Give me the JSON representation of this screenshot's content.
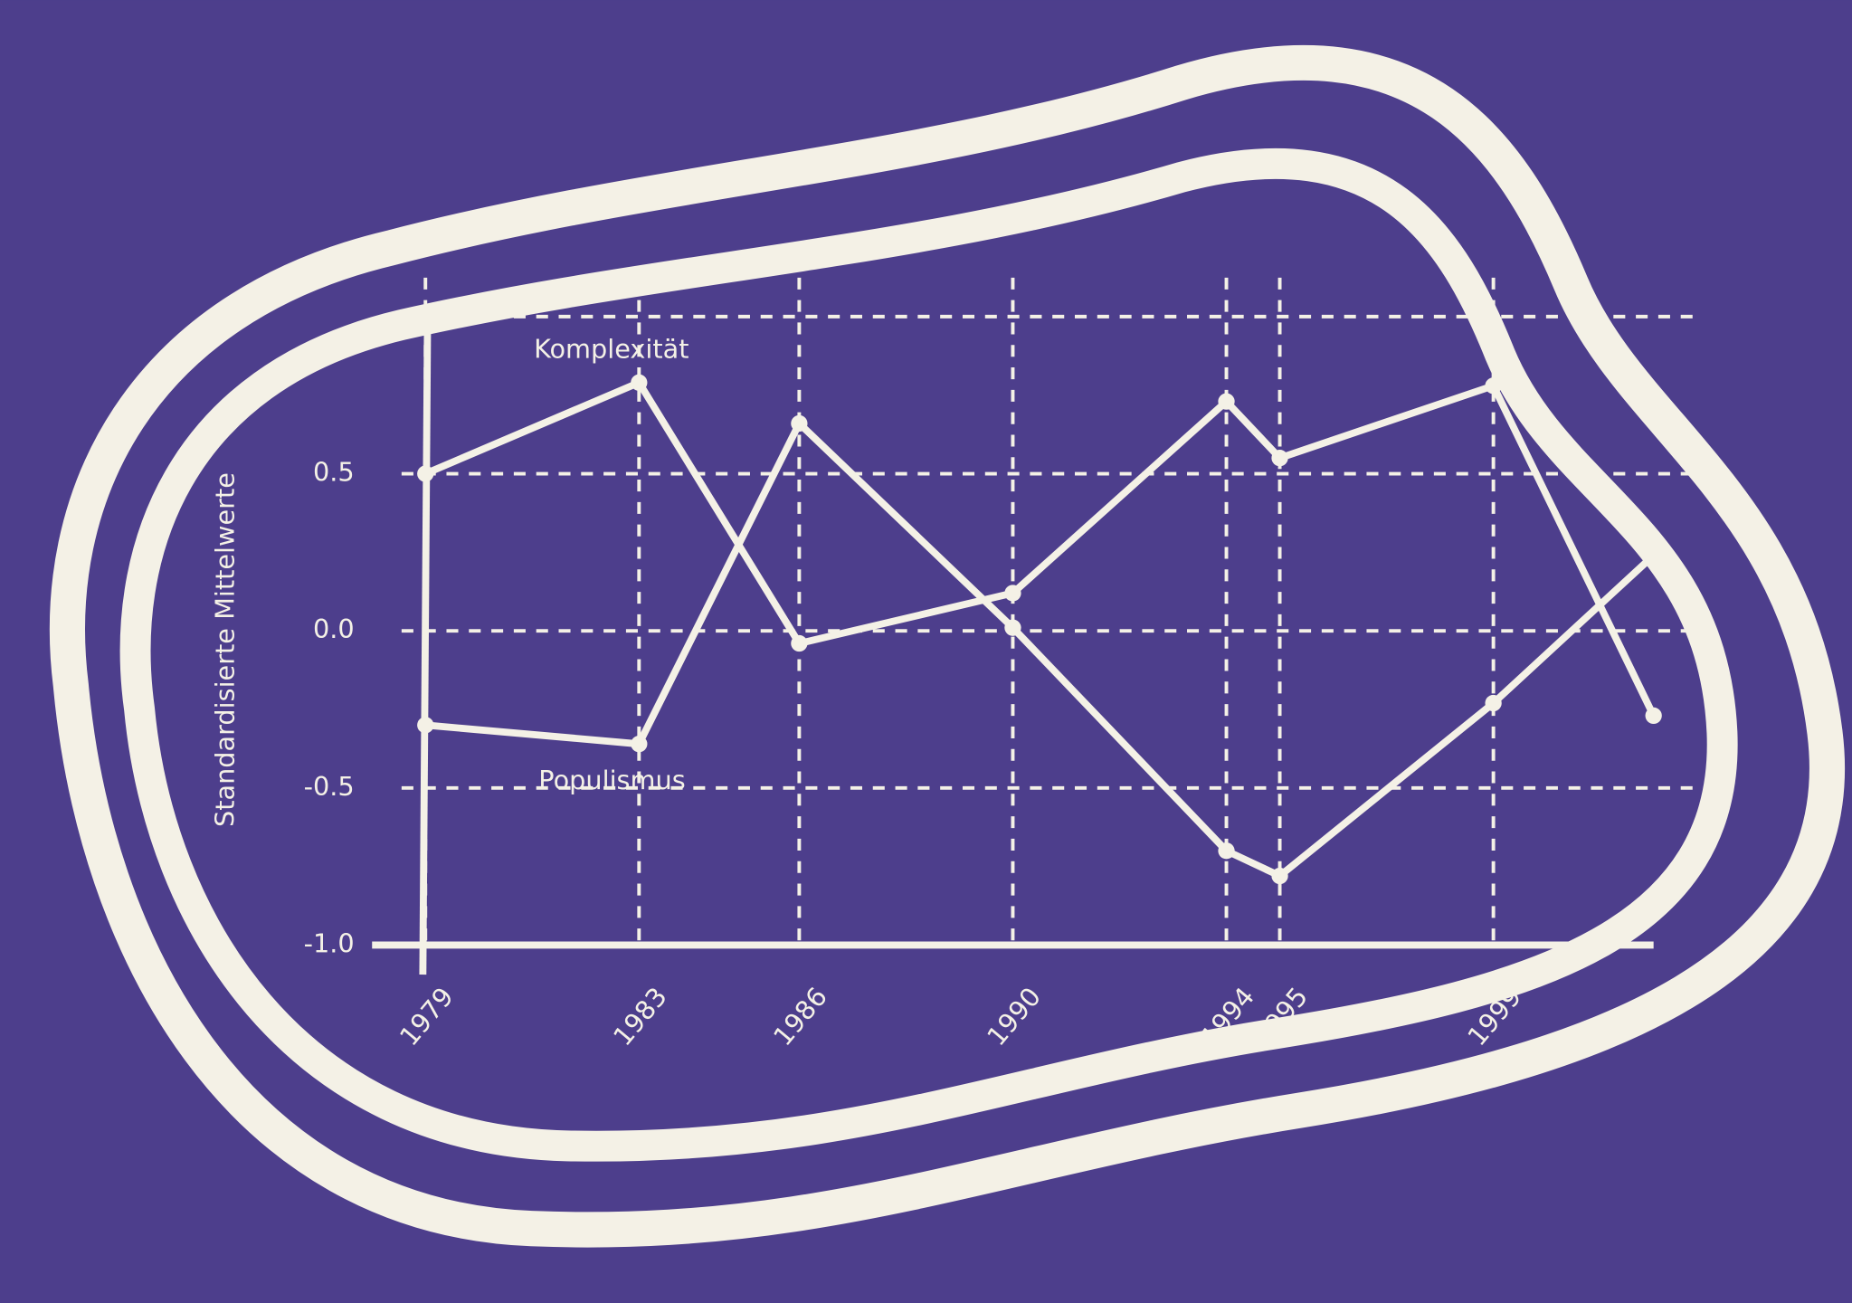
{
  "chart_data": {
    "type": "line",
    "y_label": "Standardisierte Mittelwerte",
    "x": [
      1979,
      1983,
      1986,
      1990,
      1994,
      1995,
      1999,
      2002
    ],
    "series": [
      {
        "name": "Komplexität",
        "color": "#f4f1e6",
        "values": [
          0.5,
          0.79,
          -0.04,
          0.12,
          0.73,
          0.55,
          0.78,
          -0.27
        ]
      },
      {
        "name": "Populismus",
        "color": "#f4f1e6",
        "values": [
          -0.3,
          -0.36,
          0.66,
          0.01,
          -0.7,
          -0.78,
          -0.23,
          0.24
        ]
      }
    ],
    "xlim": [
      1978,
      2002
    ],
    "xticks": [
      1979,
      1983,
      1986,
      1990,
      1994,
      1995,
      1999
    ],
    "ylim": [
      -1,
      1
    ],
    "yticks": [
      {
        "value": -1,
        "label": "-1.0"
      },
      -0.5,
      {
        "value": 0,
        "label": "0.0"
      },
      0.5,
      1
    ],
    "grid": true
  }
}
